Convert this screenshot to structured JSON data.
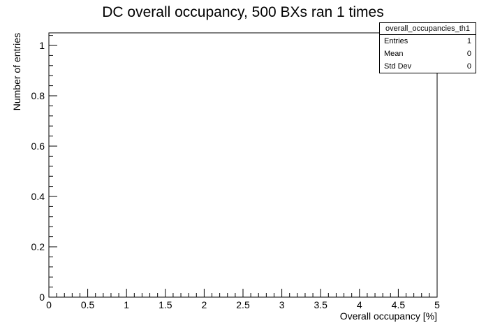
{
  "chart_data": {
    "type": "histogram",
    "title": "DC overall occupancy, 500 BXs ran 1 times",
    "xlabel": "Overall occupancy [%]",
    "ylabel": "Number of entries",
    "xlim": [
      0,
      5
    ],
    "ylim": [
      0,
      1.05
    ],
    "x_ticks": [
      "0",
      "0.5",
      "1",
      "1.5",
      "2",
      "2.5",
      "3",
      "3.5",
      "4",
      "4.5",
      "5"
    ],
    "y_ticks": [
      "0",
      "0.2",
      "0.4",
      "0.6",
      "0.8",
      "1"
    ],
    "bins": [],
    "grid": false,
    "stats": {
      "name": "overall_occupancies_th1",
      "rows": [
        {
          "label": "Entries",
          "value": "1"
        },
        {
          "label": "Mean",
          "value": "0"
        },
        {
          "label": "Std Dev",
          "value": "0"
        }
      ]
    }
  }
}
